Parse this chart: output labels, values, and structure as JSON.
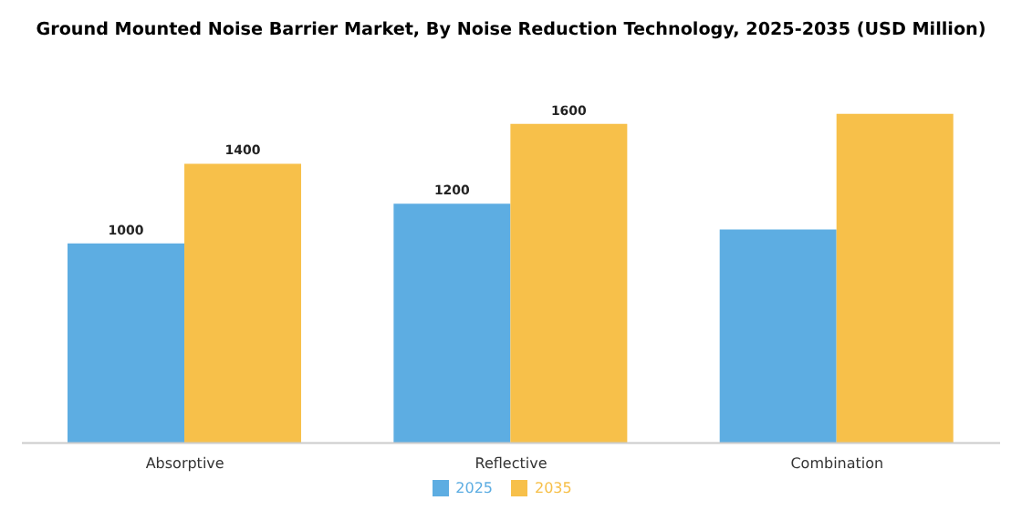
{
  "chart_data": {
    "type": "bar",
    "title": "Ground Mounted Noise Barrier Market, By Noise Reduction Technology, 2025-2035 (USD Million)",
    "categories": [
      "Absorptive",
      "Reflective",
      "Combination"
    ],
    "series": [
      {
        "name": "2025",
        "color": "#5dade2",
        "values": [
          1000,
          1200,
          1070
        ],
        "value_labels": [
          "1000",
          "1200",
          null
        ]
      },
      {
        "name": "2035",
        "color": "#f7c04a",
        "values": [
          1400,
          1600,
          1650
        ],
        "value_labels": [
          "1400",
          "1600",
          null
        ]
      }
    ],
    "legend": "bottom",
    "grid": false,
    "tick_labels": "x"
  }
}
